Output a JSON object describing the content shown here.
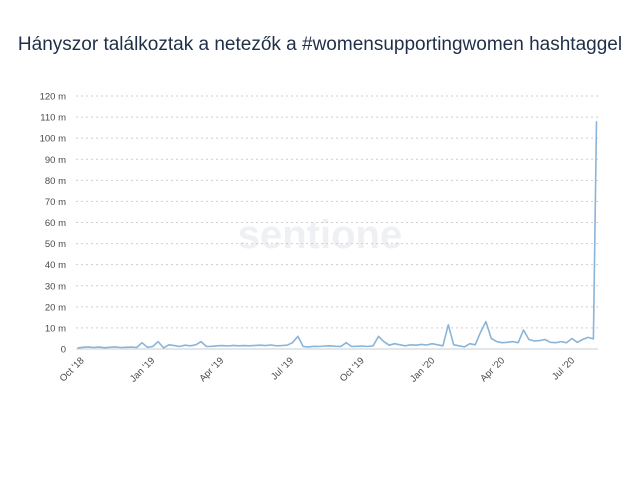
{
  "chart_data": {
    "type": "line",
    "title": "Hányszor találkoztak a netezők a #womensupportingwomen hashtaggel",
    "xlabel": "",
    "ylabel": "",
    "ylim": [
      0,
      120
    ],
    "y_ticks": [
      {
        "value": 0,
        "label": "0"
      },
      {
        "value": 10,
        "label": "10 m"
      },
      {
        "value": 20,
        "label": "20 m"
      },
      {
        "value": 30,
        "label": "30 m"
      },
      {
        "value": 40,
        "label": "40 m"
      },
      {
        "value": 50,
        "label": "50 m"
      },
      {
        "value": 60,
        "label": "60 m"
      },
      {
        "value": 70,
        "label": "70 m"
      },
      {
        "value": 80,
        "label": "80 m"
      },
      {
        "value": 90,
        "label": "90 m"
      },
      {
        "value": 100,
        "label": "100 m"
      },
      {
        "value": 110,
        "label": "110 m"
      },
      {
        "value": 120,
        "label": "120 m"
      }
    ],
    "x_ticks": [
      {
        "date": "2018-10-01",
        "label": "Oct '18"
      },
      {
        "date": "2019-01-01",
        "label": "Jan '19"
      },
      {
        "date": "2019-04-01",
        "label": "Apr '19"
      },
      {
        "date": "2019-07-01",
        "label": "Jul '19"
      },
      {
        "date": "2019-10-01",
        "label": "Oct '19"
      },
      {
        "date": "2020-01-01",
        "label": "Jan '20"
      },
      {
        "date": "2020-04-01",
        "label": "Apr '20"
      },
      {
        "date": "2020-07-01",
        "label": "Jul '20"
      }
    ],
    "xlim": [
      "2018-09-20",
      "2020-07-31"
    ],
    "grid": true,
    "watermark": "sentione",
    "line_color": "#8ab4d8",
    "series": [
      {
        "x": [
          "2018-09-22",
          "2018-09-29",
          "2018-10-06",
          "2018-10-13",
          "2018-10-20",
          "2018-10-27",
          "2018-11-03",
          "2018-11-10",
          "2018-11-17",
          "2018-11-24",
          "2018-12-01",
          "2018-12-08",
          "2018-12-15",
          "2018-12-22",
          "2018-12-29",
          "2019-01-05",
          "2019-01-12",
          "2019-01-19",
          "2019-01-26",
          "2019-02-02",
          "2019-02-09",
          "2019-02-16",
          "2019-02-23",
          "2019-03-02",
          "2019-03-09",
          "2019-03-16",
          "2019-03-23",
          "2019-03-30",
          "2019-04-06",
          "2019-04-13",
          "2019-04-20",
          "2019-04-27",
          "2019-05-04",
          "2019-05-11",
          "2019-05-18",
          "2019-05-25",
          "2019-06-01",
          "2019-06-08",
          "2019-06-15",
          "2019-06-22",
          "2019-06-29",
          "2019-07-06",
          "2019-07-13",
          "2019-07-20",
          "2019-07-27",
          "2019-08-03",
          "2019-08-10",
          "2019-08-17",
          "2019-08-24",
          "2019-08-31",
          "2019-09-07",
          "2019-09-14",
          "2019-09-21",
          "2019-09-28",
          "2019-10-05",
          "2019-10-12",
          "2019-10-19",
          "2019-10-26",
          "2019-11-02",
          "2019-11-09",
          "2019-11-16",
          "2019-11-23",
          "2019-11-30",
          "2019-12-07",
          "2019-12-14",
          "2019-12-21",
          "2019-12-28",
          "2020-01-04",
          "2020-01-11",
          "2020-01-18",
          "2020-01-25",
          "2020-02-01",
          "2020-02-08",
          "2020-02-15",
          "2020-02-22",
          "2020-02-29",
          "2020-03-07",
          "2020-03-14",
          "2020-03-21",
          "2020-03-28",
          "2020-04-04",
          "2020-04-11",
          "2020-04-18",
          "2020-04-25",
          "2020-05-02",
          "2020-05-09",
          "2020-05-16",
          "2020-05-23",
          "2020-05-30",
          "2020-06-06",
          "2020-06-13",
          "2020-06-20",
          "2020-06-27",
          "2020-07-04",
          "2020-07-11",
          "2020-07-18",
          "2020-07-25",
          "2020-07-29"
        ],
        "values": [
          0.5,
          0.8,
          1.0,
          0.7,
          0.9,
          0.6,
          0.8,
          1.0,
          0.7,
          0.8,
          0.9,
          0.7,
          3.0,
          0.8,
          1.2,
          3.5,
          0.5,
          2.0,
          1.6,
          1.2,
          1.8,
          1.5,
          2.0,
          3.5,
          1.2,
          1.3,
          1.5,
          1.6,
          1.4,
          1.7,
          1.5,
          1.6,
          1.5,
          1.7,
          1.8,
          1.6,
          1.9,
          1.5,
          1.6,
          1.8,
          3.0,
          6.0,
          1.2,
          1.0,
          1.3,
          1.2,
          1.4,
          1.5,
          1.3,
          1.2,
          3.0,
          1.2,
          1.3,
          1.4,
          1.2,
          1.5,
          6.0,
          3.5,
          1.8,
          2.5,
          2.0,
          1.5,
          2.0,
          1.8,
          2.2,
          1.9,
          2.5,
          2.0,
          1.5,
          11.5,
          2.0,
          1.5,
          1.0,
          2.5,
          2.0,
          8.0,
          13.0,
          5.0,
          3.5,
          3.0,
          3.2,
          3.5,
          3.0,
          9.0,
          4.5,
          3.8,
          4.0,
          4.5,
          3.2,
          3.0,
          3.5,
          3.0,
          5.0,
          3.2,
          4.5,
          5.5,
          4.8,
          108.0
        ]
      }
    ]
  }
}
